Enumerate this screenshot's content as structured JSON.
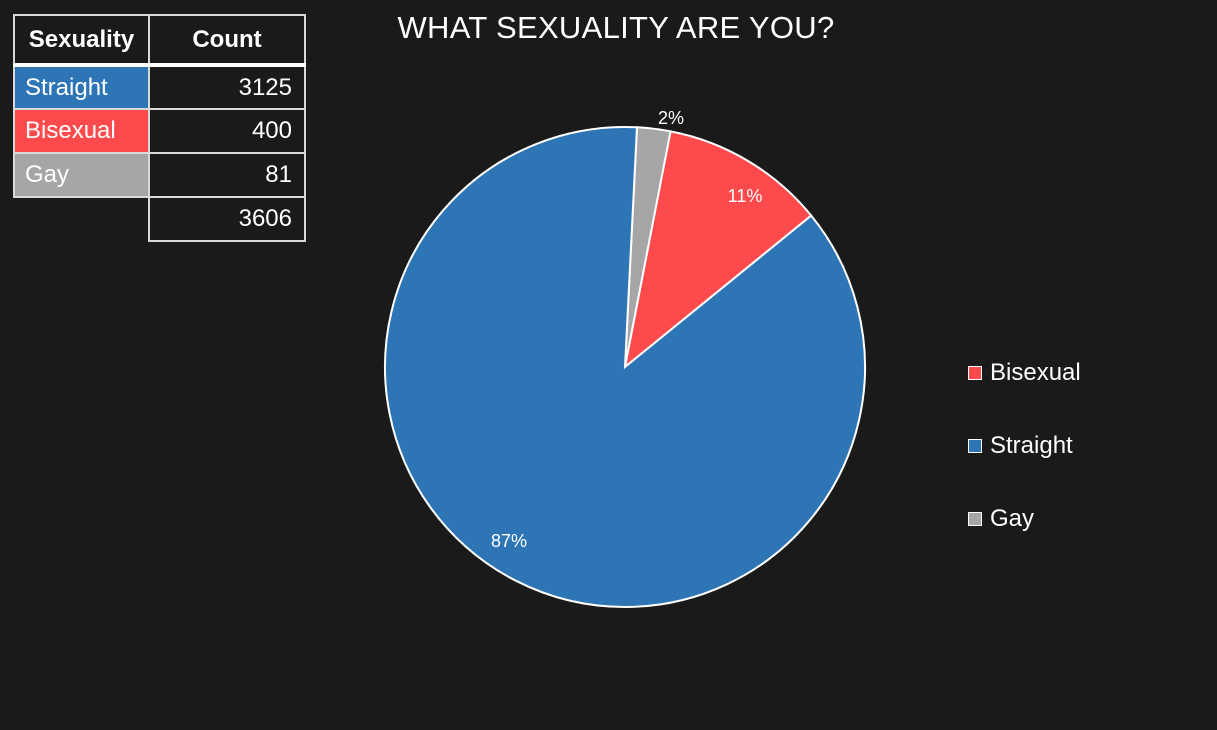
{
  "table": {
    "headers": {
      "name": "Sexuality",
      "count": "Count"
    },
    "rows": [
      {
        "name": "Straight",
        "count": "3125",
        "color": "#2e75b6"
      },
      {
        "name": "Bisexual",
        "count": "400",
        "color": "#ff4a4d"
      },
      {
        "name": "Gay",
        "count": "81",
        "color": "#a6a6a6"
      }
    ],
    "total": "3606"
  },
  "chart_data": {
    "type": "pie",
    "title": "WHAT SEXUALITY ARE YOU?",
    "slices": [
      {
        "label": "Gay",
        "value": 81,
        "percent_label": "2%",
        "color": "#a6a6a6"
      },
      {
        "label": "Bisexual",
        "value": 400,
        "percent_label": "11%",
        "color": "#ff4a4d"
      },
      {
        "label": "Straight",
        "value": 3125,
        "percent_label": "87%",
        "color": "#2e75b6"
      }
    ],
    "legend": {
      "position": "right",
      "entries": [
        {
          "label": "Bisexual",
          "color": "#ff4a4d"
        },
        {
          "label": "Straight",
          "color": "#2e75b6"
        },
        {
          "label": "Gay",
          "color": "#a6a6a6"
        }
      ]
    }
  }
}
